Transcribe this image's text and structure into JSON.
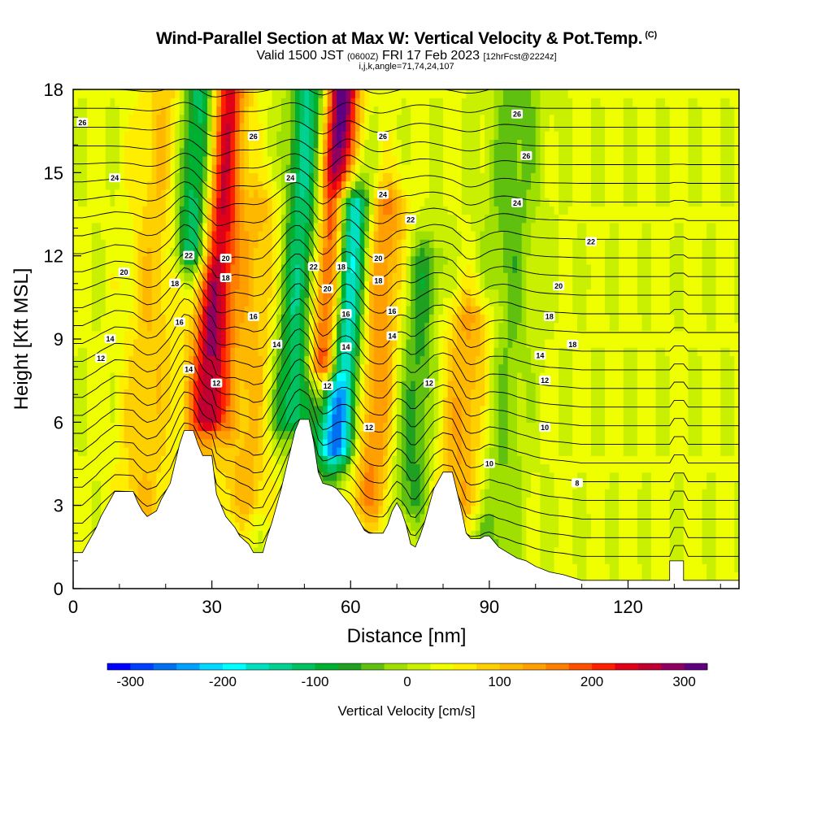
{
  "header": {
    "title": "Wind-Parallel Section at Max W: Vertical Velocity & Pot.Temp.",
    "title_mark": "(C)",
    "subtitle_a": "Valid 1500 JST",
    "subtitle_b": "(0600Z)",
    "subtitle_c": "FRI 17 Feb 2023",
    "subtitle_d": "[12hrFcst@2224z]",
    "params": "i,j,k,angle=71,74,24,107"
  },
  "chart_data": {
    "type": "heatmap",
    "xlabel": "Distance [nm]",
    "ylabel": "Height [Kft MSL]",
    "xlim": [
      0,
      144
    ],
    "ylim": [
      0,
      18
    ],
    "x_ticks": [
      0,
      30,
      60,
      90,
      120
    ],
    "y_ticks": [
      0,
      3,
      6,
      9,
      12,
      15,
      18
    ],
    "colorbar": {
      "title": "Vertical Velocity [cm/s]",
      "range": [
        -325,
        325
      ],
      "tick_values": [
        -300,
        -200,
        -100,
        0,
        100,
        200,
        300
      ],
      "tick_labels": [
        "-300",
        "-200",
        "-100",
        "0",
        "100",
        "200",
        "300"
      ],
      "colors": [
        "#0000ff",
        "#0040ff",
        "#0070f0",
        "#00a0ff",
        "#00d8ff",
        "#00ffff",
        "#00e0c0",
        "#00d090",
        "#00c060",
        "#00b030",
        "#20a020",
        "#60c010",
        "#a0e000",
        "#c8f000",
        "#f0ff00",
        "#ffee00",
        "#ffd000",
        "#ffb800",
        "#ffa000",
        "#ff8000",
        "#ff5000",
        "#ff2000",
        "#e00018",
        "#c00030",
        "#900060",
        "#600080"
      ]
    },
    "velocity_structures_cm_s": [
      {
        "x": 25,
        "w": 3,
        "min": 12,
        "max": 18,
        "value": -200
      },
      {
        "x": 30,
        "w": 3,
        "min": 6,
        "max": 18,
        "value": 250
      },
      {
        "x": 48,
        "w": 3,
        "min": 6,
        "max": 18,
        "value": -160
      },
      {
        "x": 55,
        "w": 2.5,
        "min": 8,
        "max": 18,
        "value": 320
      },
      {
        "x": 58,
        "w": 3,
        "min": 5,
        "max": 14,
        "value": -300
      },
      {
        "x": 66,
        "w": 3,
        "min": 3,
        "max": 14,
        "value": 130
      },
      {
        "x": 75,
        "w": 3,
        "min": 3,
        "max": 12,
        "value": -90
      },
      {
        "x": 86,
        "w": 4,
        "min": 3,
        "max": 10,
        "value": 110
      },
      {
        "x": 93,
        "w": 4,
        "min": 1,
        "max": 18,
        "value": -70
      },
      {
        "x": 39,
        "w": 4,
        "min": 3,
        "max": 14,
        "value": 80
      },
      {
        "x": 17,
        "w": 4,
        "min": 2,
        "max": 18,
        "value": 70
      }
    ],
    "terrain_kft": [
      [
        0,
        1.3
      ],
      [
        2,
        1.3
      ],
      [
        3,
        1.6
      ],
      [
        4,
        1.9
      ],
      [
        5,
        2.2
      ],
      [
        6,
        2.6
      ],
      [
        7,
        2.9
      ],
      [
        8,
        3.2
      ],
      [
        9,
        3.5
      ],
      [
        13,
        3.5
      ],
      [
        14,
        3.1
      ],
      [
        15,
        2.8
      ],
      [
        16,
        2.6
      ],
      [
        18,
        2.8
      ],
      [
        19,
        3.2
      ],
      [
        21,
        3.8
      ],
      [
        22,
        4.5
      ],
      [
        23,
        5.2
      ],
      [
        24,
        5.7
      ],
      [
        26,
        5.7
      ],
      [
        27,
        5.2
      ],
      [
        28,
        4.8
      ],
      [
        30,
        4.8
      ],
      [
        31,
        3.4
      ],
      [
        32,
        3.0
      ],
      [
        33,
        2.6
      ],
      [
        35,
        2.2
      ],
      [
        36,
        1.9
      ],
      [
        38,
        1.6
      ],
      [
        39,
        1.3
      ],
      [
        41,
        1.3
      ],
      [
        42,
        1.9
      ],
      [
        43,
        2.4
      ],
      [
        44,
        3.0
      ],
      [
        45,
        3.6
      ],
      [
        46,
        4.3
      ],
      [
        47,
        5.0
      ],
      [
        48,
        5.7
      ],
      [
        49,
        6.1
      ],
      [
        51,
        6.1
      ],
      [
        52,
        5.3
      ],
      [
        53,
        4.2
      ],
      [
        54,
        3.8
      ],
      [
        56,
        3.7
      ],
      [
        57,
        3.6
      ],
      [
        58,
        3.4
      ],
      [
        59,
        3.2
      ],
      [
        60,
        3.0
      ],
      [
        61,
        2.7
      ],
      [
        62,
        2.4
      ],
      [
        63,
        2.1
      ],
      [
        64,
        2.0
      ],
      [
        67,
        2.0
      ],
      [
        68,
        2.3
      ],
      [
        69,
        2.8
      ],
      [
        70,
        3.1
      ],
      [
        71,
        2.8
      ],
      [
        72,
        2.3
      ],
      [
        73,
        1.6
      ],
      [
        74,
        1.5
      ],
      [
        75,
        1.9
      ],
      [
        76,
        2.4
      ],
      [
        77,
        3.0
      ],
      [
        78,
        3.6
      ],
      [
        80,
        4.2
      ],
      [
        82,
        4.2
      ],
      [
        83,
        3.5
      ],
      [
        84,
        2.8
      ],
      [
        85,
        2.0
      ],
      [
        86,
        1.8
      ],
      [
        88,
        1.8
      ],
      [
        89,
        1.9
      ],
      [
        90,
        1.9
      ],
      [
        91,
        1.7
      ],
      [
        92,
        1.5
      ],
      [
        94,
        1.3
      ],
      [
        96,
        1.1
      ],
      [
        98,
        1.0
      ],
      [
        100,
        0.8
      ],
      [
        103,
        0.6
      ],
      [
        106,
        0.5
      ],
      [
        110,
        0.3
      ],
      [
        129,
        0.3
      ],
      [
        129,
        1.0
      ],
      [
        132,
        1.0
      ],
      [
        132,
        0.3
      ],
      [
        144,
        0.3
      ]
    ],
    "theta_contour_labels": [
      {
        "text": "26",
        "x": 2,
        "y": 16.8
      },
      {
        "text": "24",
        "x": 9,
        "y": 14.8
      },
      {
        "text": "26",
        "x": 39,
        "y": 16.3
      },
      {
        "text": "24",
        "x": 47,
        "y": 14.8
      },
      {
        "text": "26",
        "x": 67,
        "y": 16.3
      },
      {
        "text": "24",
        "x": 67,
        "y": 14.2
      },
      {
        "text": "22",
        "x": 73,
        "y": 13.3
      },
      {
        "text": "26",
        "x": 96,
        "y": 17.1
      },
      {
        "text": "26",
        "x": 98,
        "y": 15.6
      },
      {
        "text": "24",
        "x": 96,
        "y": 13.9
      },
      {
        "text": "22",
        "x": 112,
        "y": 12.5
      },
      {
        "text": "22",
        "x": 25,
        "y": 12.0
      },
      {
        "text": "20",
        "x": 11,
        "y": 11.4
      },
      {
        "text": "18",
        "x": 22,
        "y": 11.0
      },
      {
        "text": "16",
        "x": 23,
        "y": 9.6
      },
      {
        "text": "14",
        "x": 8,
        "y": 9.0
      },
      {
        "text": "12",
        "x": 6,
        "y": 8.3
      },
      {
        "text": "14",
        "x": 25,
        "y": 7.9
      },
      {
        "text": "12",
        "x": 31,
        "y": 7.4
      },
      {
        "text": "20",
        "x": 33,
        "y": 11.9
      },
      {
        "text": "18",
        "x": 33,
        "y": 11.2
      },
      {
        "text": "16",
        "x": 39,
        "y": 9.8
      },
      {
        "text": "14",
        "x": 44,
        "y": 8.8
      },
      {
        "text": "22",
        "x": 52,
        "y": 11.6
      },
      {
        "text": "18",
        "x": 58,
        "y": 11.6
      },
      {
        "text": "20",
        "x": 55,
        "y": 10.8
      },
      {
        "text": "16",
        "x": 59,
        "y": 9.9
      },
      {
        "text": "14",
        "x": 59,
        "y": 8.7
      },
      {
        "text": "12",
        "x": 55,
        "y": 7.3
      },
      {
        "text": "20",
        "x": 66,
        "y": 11.9
      },
      {
        "text": "18",
        "x": 66,
        "y": 11.1
      },
      {
        "text": "16",
        "x": 69,
        "y": 10.0
      },
      {
        "text": "14",
        "x": 69,
        "y": 9.1
      },
      {
        "text": "12",
        "x": 64,
        "y": 5.8
      },
      {
        "text": "12",
        "x": 77,
        "y": 7.4
      },
      {
        "text": "20",
        "x": 105,
        "y": 10.9
      },
      {
        "text": "18",
        "x": 103,
        "y": 9.8
      },
      {
        "text": "18",
        "x": 108,
        "y": 8.8
      },
      {
        "text": "14",
        "x": 101,
        "y": 8.4
      },
      {
        "text": "12",
        "x": 102,
        "y": 7.5
      },
      {
        "text": "10",
        "x": 102,
        "y": 5.8
      },
      {
        "text": "10",
        "x": 90,
        "y": 4.5
      },
      {
        "text": "8",
        "x": 109,
        "y": 3.8
      }
    ]
  }
}
